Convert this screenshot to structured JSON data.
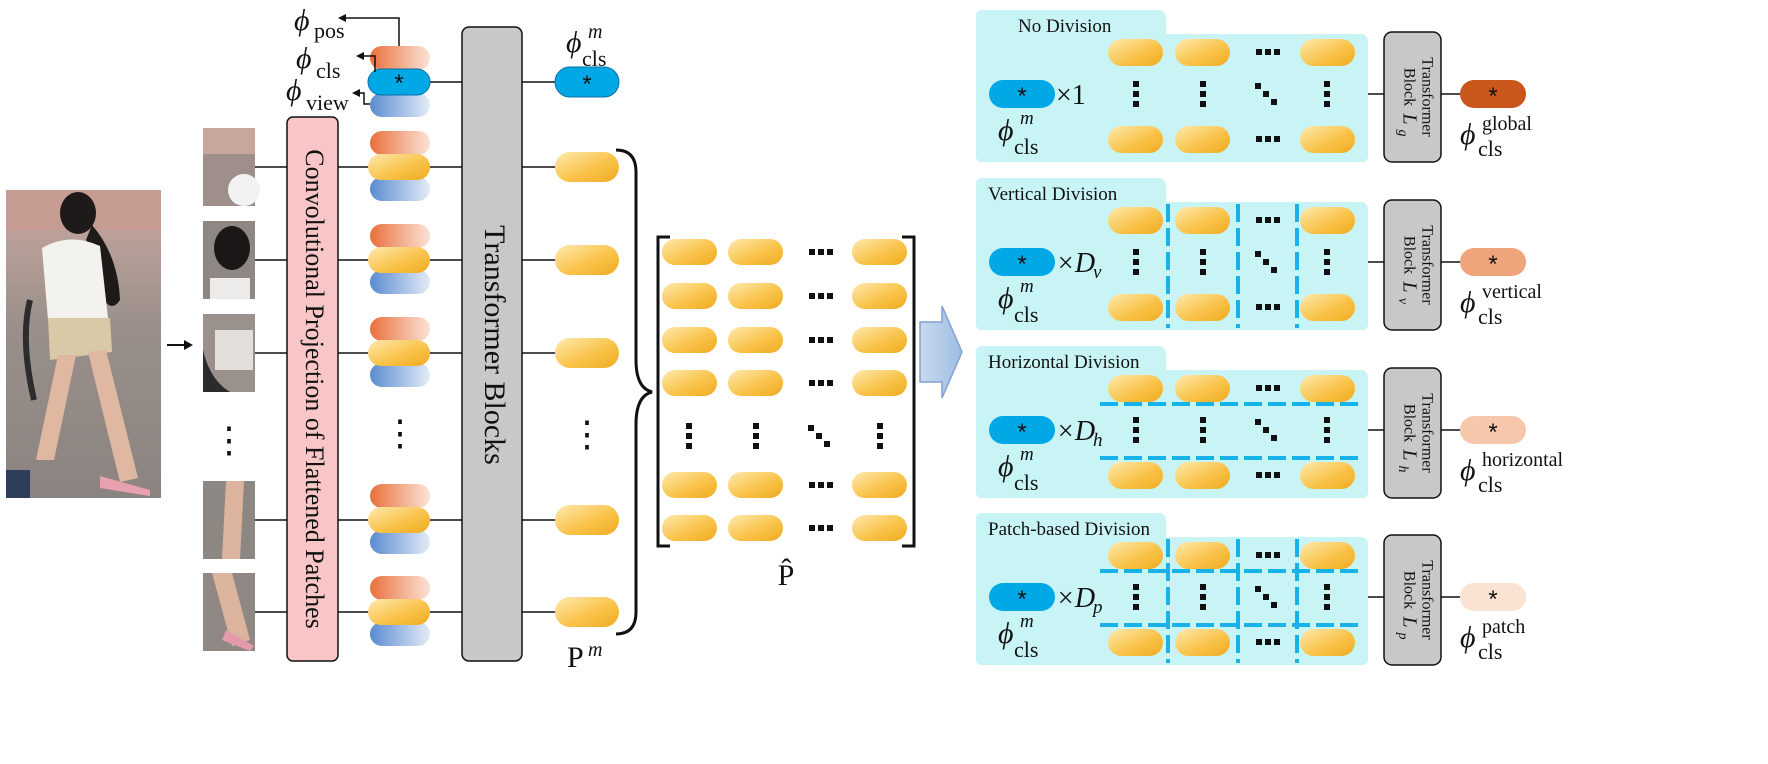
{
  "left": {
    "phi_pos": {
      "main": "ϕ",
      "sub": "pos"
    },
    "phi_cls": {
      "main": "ϕ",
      "sub": "cls"
    },
    "phi_view": {
      "main": "ϕ",
      "sub": "view"
    },
    "conv_label": "Convolutional Projection of Flattened Patches",
    "transformer_label": "Transformer Blocks",
    "phi_cls_m": {
      "main": "ϕ",
      "sup": "m",
      "sub": "cls"
    },
    "p_m": {
      "main": "P",
      "sup": "m"
    },
    "p_hat": "P̂",
    "cls_symbol": "*",
    "vertical_ellipsis": "⋮"
  },
  "panels": [
    {
      "title": "No Division",
      "multiplier": "×1",
      "block": {
        "line1": "Transformer",
        "line2": "Block",
        "sym": "L",
        "sub": "g"
      },
      "out": {
        "main": "ϕ",
        "sup": "global",
        "sub": "cls"
      },
      "cls": {
        "main": "ϕ",
        "sup": "m",
        "sub": "cls"
      }
    },
    {
      "title": "Vertical Division",
      "multiplier": "×D",
      "mult_sub": "v",
      "block": {
        "line1": "Transformer",
        "line2": "Block",
        "sym": "L",
        "sub": "v"
      },
      "out": {
        "main": "ϕ",
        "sup": "vertical",
        "sub": "cls"
      },
      "cls": {
        "main": "ϕ",
        "sup": "m",
        "sub": "cls"
      }
    },
    {
      "title": "Horizontal Division",
      "multiplier": "×D",
      "mult_sub": "h",
      "block": {
        "line1": "Transformer",
        "line2": "Block",
        "sym": "L",
        "sub": "h"
      },
      "out": {
        "main": "ϕ",
        "sup": "horizontal",
        "sub": "cls"
      },
      "cls": {
        "main": "ϕ",
        "sup": "m",
        "sub": "cls"
      }
    },
    {
      "title": "Patch-based Division",
      "multiplier": "×D",
      "mult_sub": "p",
      "block": {
        "line1": "Transformer",
        "line2": "Block",
        "sym": "L",
        "sub": "p"
      },
      "out": {
        "main": "ϕ",
        "sup": "patch",
        "sub": "cls"
      },
      "cls": {
        "main": "ϕ",
        "sup": "m",
        "sub": "cls"
      }
    }
  ],
  "colors": {
    "panel_bg": "#c9f4f6",
    "cls_token": "#00a8e6",
    "patch_token": "#f7bd3a",
    "transformer_block": "#c8c8c8",
    "conv_block": "#f8c6c6",
    "pos_token": "#ea7a45",
    "view_token": "#5e8fd1",
    "divider": "#1ab0e8",
    "out_global": "#c9571c",
    "out_vertical": "#f0a47c",
    "out_horizontal": "#f6c7ab",
    "out_patch": "#fbe3d3"
  }
}
